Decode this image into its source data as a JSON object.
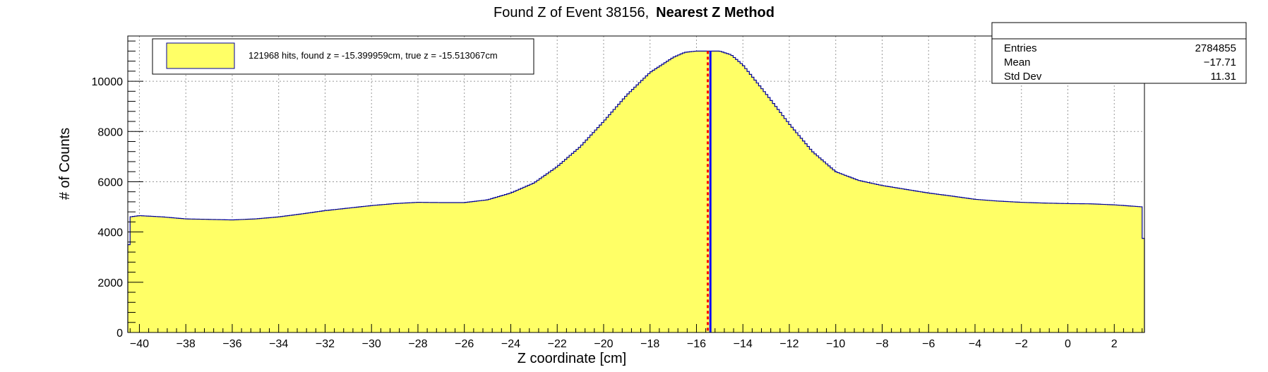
{
  "chart_data": {
    "type": "histogram",
    "title_prefix": "Found Z of Event 38156,",
    "title_method": "Nearest Z Method",
    "xlabel": "Z coordinate [cm]",
    "ylabel": "# of Counts",
    "xlim": [
      -40.5,
      3.3
    ],
    "ylim": [
      0,
      11800
    ],
    "grid": true,
    "x_ticks": [
      -40,
      -38,
      -36,
      -34,
      -32,
      -30,
      -28,
      -26,
      -24,
      -22,
      -20,
      -18,
      -16,
      -14,
      -12,
      -10,
      -8,
      -6,
      -4,
      -2,
      0,
      2
    ],
    "y_ticks": [
      0,
      2000,
      4000,
      6000,
      8000,
      10000
    ],
    "x_tick_labels": [
      "−40",
      "−38",
      "−36",
      "−34",
      "−32",
      "−30",
      "−28",
      "−26",
      "−24",
      "−22",
      "−20",
      "−18",
      "−16",
      "−14",
      "−12",
      "−10",
      "−8",
      "−6",
      "−4",
      "−2",
      "0",
      "2"
    ],
    "y_tick_labels": [
      "0",
      "2000",
      "4000",
      "6000",
      "8000",
      "10000"
    ],
    "curve": {
      "x": [
        -40.5,
        -40.4,
        -40.0,
        -39.0,
        -38.0,
        -37.0,
        -36.0,
        -35.0,
        -34.0,
        -33.0,
        -32.0,
        -31.0,
        -30.0,
        -29.0,
        -28.0,
        -27.0,
        -26.0,
        -25.0,
        -24.0,
        -23.0,
        -22.0,
        -21.0,
        -20.0,
        -19.0,
        -18.0,
        -17.0,
        -16.5,
        -16.0,
        -15.5,
        -15.0,
        -14.5,
        -14.0,
        -13.0,
        -12.0,
        -11.0,
        -10.0,
        -9.0,
        -8.0,
        -7.0,
        -6.0,
        -5.0,
        -4.0,
        -3.0,
        -2.0,
        -1.0,
        0.0,
        1.0,
        2.0,
        3.2,
        3.3
      ],
      "y": [
        2400,
        4600,
        4650,
        4600,
        4520,
        4500,
        4480,
        4520,
        4600,
        4720,
        4850,
        4950,
        5050,
        5130,
        5180,
        5170,
        5170,
        5280,
        5550,
        5950,
        6600,
        7400,
        8400,
        9450,
        10350,
        10950,
        11150,
        11200,
        11200,
        11200,
        11050,
        10650,
        9500,
        8300,
        7200,
        6400,
        6050,
        5850,
        5700,
        5550,
        5430,
        5300,
        5230,
        5180,
        5150,
        5130,
        5120,
        5080,
        5000,
        2500
      ],
      "fill_color": "#ffff66",
      "line_color": "#000099"
    },
    "markers": [
      {
        "label": "found z",
        "value": -15.399959,
        "color": "#0000ff"
      },
      {
        "label": "true z",
        "value": -15.513067,
        "color": "#ff0000"
      }
    ],
    "legend": {
      "position": "top-left",
      "text": "121968 hits, found z = -15.399959cm, true z = -15.513067cm",
      "swatch_color": "#ffff66"
    },
    "stats_box": {
      "position": "top-right",
      "rows": [
        {
          "label": "Entries",
          "value": "2784855"
        },
        {
          "label": "Mean",
          "value": "−17.71"
        },
        {
          "label": "Std Dev",
          "value": "11.31"
        }
      ]
    }
  }
}
